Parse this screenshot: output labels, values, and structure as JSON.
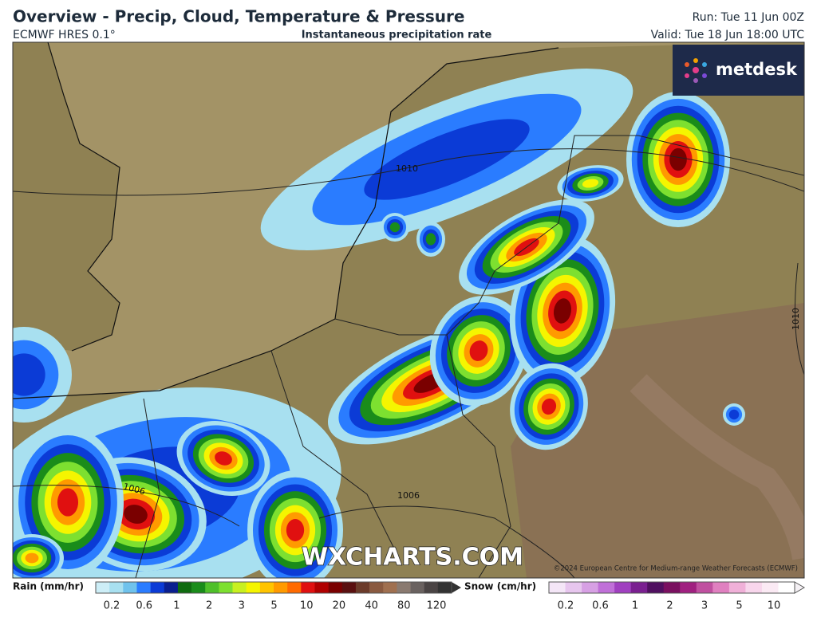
{
  "header": {
    "title": "Overview - Precip, Cloud, Temperature & Pressure",
    "model": "ECMWF HRES 0.1°",
    "field": "Instantaneous precipitation rate",
    "run": "Run: Tue 11 Jun 00Z",
    "valid": "Valid: Tue 18 Jun 18:00 UTC"
  },
  "logo": "metdesk",
  "map": {
    "isobar_labels": [
      "1010",
      "1010",
      "1006",
      "1006"
    ],
    "watermark": "WXCHARTS.COM",
    "copyright": "©2024 European Centre for Medium-range Weather Forecasts (ECMWF)"
  },
  "legend": {
    "rain": {
      "title": "Rain (mm/hr)",
      "labels": [
        "0.2",
        "0.6",
        "1",
        "2",
        "3",
        "5",
        "10",
        "20",
        "40",
        "80",
        "120"
      ]
    },
    "snow": {
      "title": "Snow (cm/hr)",
      "labels": [
        "0.2",
        "0.6",
        "1",
        "2",
        "3",
        "5",
        "10"
      ]
    }
  }
}
